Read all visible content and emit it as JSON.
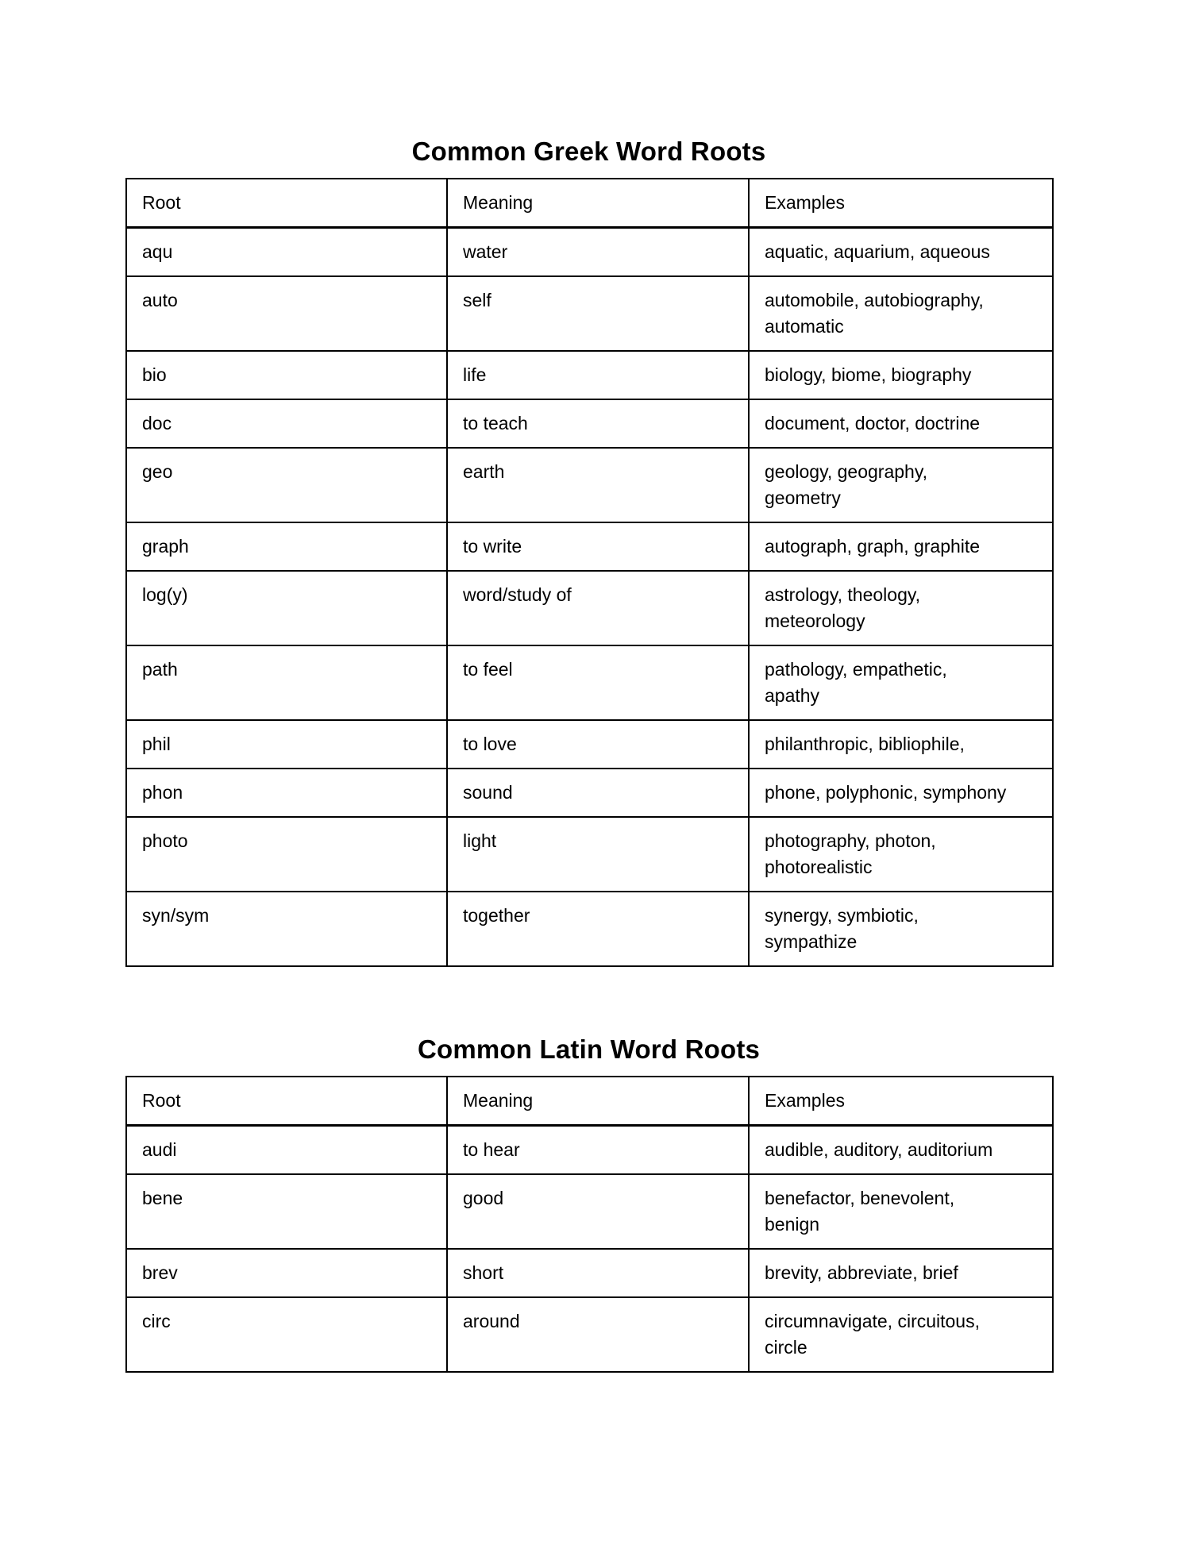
{
  "greek": {
    "title": "Common Greek Word Roots",
    "headers": [
      "Root",
      "Meaning",
      "Examples"
    ],
    "rows": [
      {
        "root": "aqu",
        "meaning": "water",
        "examples": "aquatic, aquarium, aqueous"
      },
      {
        "root": "auto",
        "meaning": "self",
        "examples": "automobile, autobiography,\nautomatic"
      },
      {
        "root": "bio",
        "meaning": "life",
        "examples": "biology, biome, biography"
      },
      {
        "root": "doc",
        "meaning": "to teach",
        "examples": "document, doctor, doctrine"
      },
      {
        "root": "geo",
        "meaning": "earth",
        "examples": "geology, geography,\ngeometry"
      },
      {
        "root": "graph",
        "meaning": "to write",
        "examples": "autograph, graph, graphite"
      },
      {
        "root": "log(y)",
        "meaning": "word/study of",
        "examples": "astrology, theology,\nmeteorology"
      },
      {
        "root": "path",
        "meaning": "to feel",
        "examples": "pathology, empathetic,\napathy"
      },
      {
        "root": "phil",
        "meaning": "to love",
        "examples": "philanthropic, bibliophile,"
      },
      {
        "root": "phon",
        "meaning": "sound",
        "examples": "phone, polyphonic, symphony"
      },
      {
        "root": "photo",
        "meaning": "light",
        "examples": "photography, photon,\nphotorealistic"
      },
      {
        "root": "syn/sym",
        "meaning": "together",
        "examples": "synergy, symbiotic,\nsympathize"
      }
    ]
  },
  "latin": {
    "title": "Common Latin Word Roots",
    "headers": [
      "Root",
      "Meaning",
      "Examples"
    ],
    "rows": [
      {
        "root": "audi",
        "meaning": "to hear",
        "examples": "audible, auditory, auditorium"
      },
      {
        "root": "bene",
        "meaning": "good",
        "examples": "benefactor, benevolent,\nbenign"
      },
      {
        "root": "brev",
        "meaning": "short",
        "examples": "brevity, abbreviate, brief"
      },
      {
        "root": "circ",
        "meaning": "around",
        "examples": "circumnavigate, circuitous,\ncircle"
      }
    ]
  },
  "colors": {
    "page_background": "#ffffff",
    "text": "#000000",
    "table_border": "#000000"
  }
}
